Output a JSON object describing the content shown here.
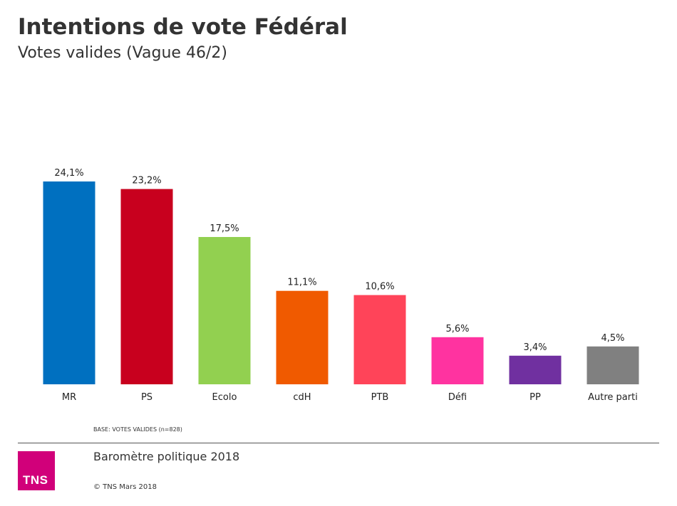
{
  "header": {
    "title": "Intentions de vote Fédéral",
    "subtitle": "Votes valides (Vague 46/2)"
  },
  "chart_data": {
    "type": "bar",
    "title": "Intentions de vote Fédéral",
    "subtitle": "Votes valides (Vague 46/2)",
    "categories": [
      "MR",
      "PS",
      "Ecolo",
      "cdH",
      "PTB",
      "Défi",
      "PP",
      "Autre parti"
    ],
    "values": [
      24.1,
      23.2,
      17.5,
      11.1,
      10.6,
      5.6,
      3.4,
      4.5
    ],
    "value_labels": [
      "24,1%",
      "23,2%",
      "17,5%",
      "11,1%",
      "10,6%",
      "5,6%",
      "3,4%",
      "4,5%"
    ],
    "colors": [
      "#0070c0",
      "#c8001e",
      "#92d050",
      "#f05a00",
      "#ff4459",
      "#ff33a0",
      "#7030a0",
      "#808080"
    ],
    "xlabel": "",
    "ylabel": "",
    "ylim": [
      0,
      24.1
    ],
    "grid": false,
    "legend": "none"
  },
  "footer": {
    "base_note": "BASE: VOTES VALIDES  (n=828)",
    "barometre": "Baromètre politique  2018",
    "copyright": "© TNS Mars 2018",
    "logo_text": "TNS",
    "logo_color": "#d1007a"
  }
}
